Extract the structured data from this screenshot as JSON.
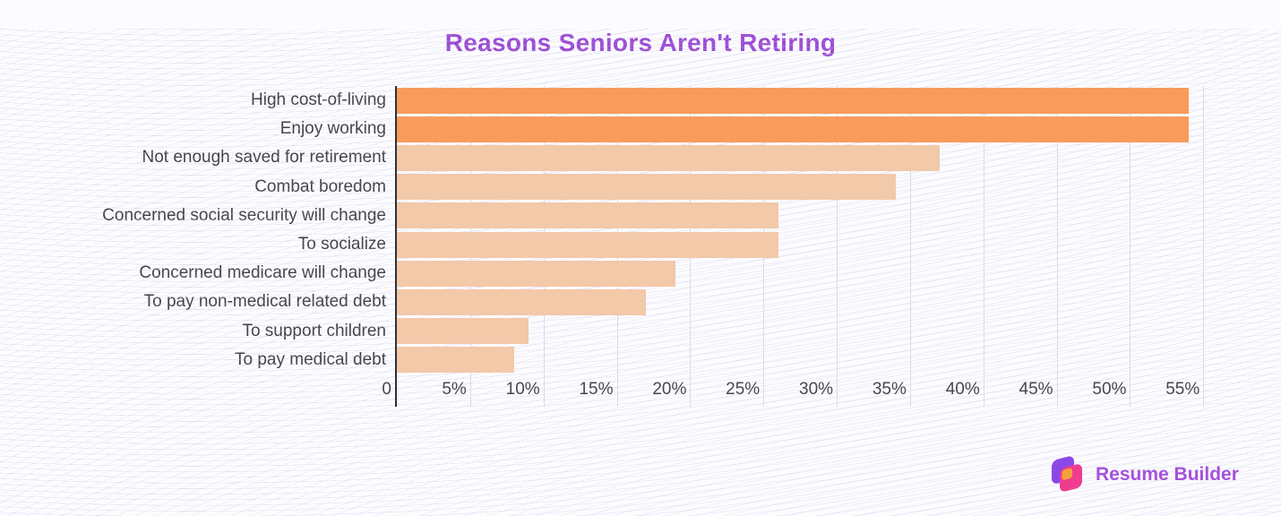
{
  "title": "Reasons Seniors Aren't Retiring",
  "chart_data": {
    "type": "bar",
    "orientation": "horizontal",
    "title": "Reasons Seniors Aren't Retiring",
    "categories": [
      "High cost-of-living",
      "Enjoy working",
      "Not enough saved for retirement",
      "Combat boredom",
      "Concerned social security will change",
      "To socialize",
      "Concerned medicare will change",
      "To pay non-medical related debt",
      "To support children",
      "To pay medical debt"
    ],
    "values": [
      54,
      54,
      37,
      34,
      26,
      26,
      19,
      17,
      9,
      8
    ],
    "unit": "%",
    "xlabel": "",
    "ylabel": "",
    "xlim": [
      0,
      55.9
    ],
    "x_tick_values": [
      0,
      5,
      10,
      15,
      20,
      25,
      30,
      35,
      40,
      45,
      50,
      55
    ],
    "x_tick_labels": [
      "0",
      "5%",
      "10%",
      "15%",
      "20%",
      "25%",
      "30%",
      "35%",
      "40%",
      "45%",
      "50%",
      "55%"
    ],
    "grid": "vertical",
    "legend": "none",
    "bar_color_highlight": "#f99c5b",
    "bar_color_base": "#f2c9a9",
    "highlight_count": 2
  },
  "branding": {
    "logo_text": "Resume Builder",
    "logo_icon": "resume-builder-logo",
    "logo_colors": {
      "purple": "#8b48e8",
      "pink": "#ee3d8f",
      "orange": "#f8a13f",
      "text": "#a551dc"
    }
  },
  "colors": {
    "title": "#9b4ad5",
    "axis_line": "#2f2f36",
    "gridline": "#dcdbe3",
    "tick_text": "#47474e",
    "label_text": "#3f3f46",
    "background": "#fcfcff"
  }
}
